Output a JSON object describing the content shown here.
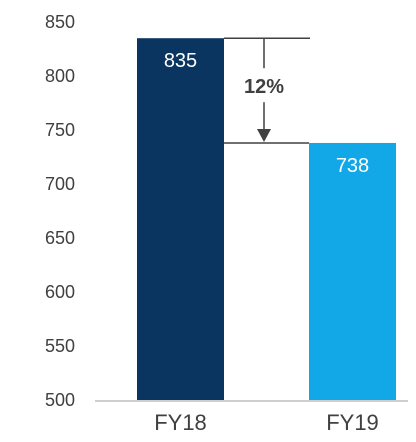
{
  "chart_data": {
    "type": "bar",
    "categories": [
      "FY18",
      "FY19"
    ],
    "values": [
      835,
      738
    ],
    "value_labels": [
      "835",
      "738"
    ],
    "colors": [
      "#0a3560",
      "#12a8e8"
    ],
    "ylim": [
      500,
      850
    ],
    "y_ticks": [
      500,
      550,
      600,
      650,
      700,
      750,
      800,
      850
    ],
    "grid": false,
    "annotation": {
      "text": "12%",
      "from": "FY18",
      "to": "FY19",
      "direction": "down"
    }
  }
}
